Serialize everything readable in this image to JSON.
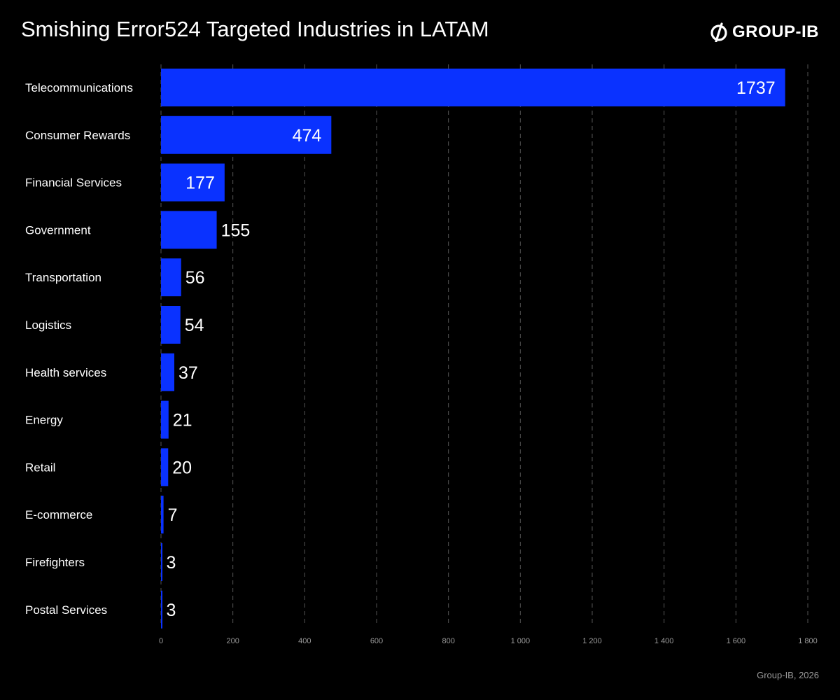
{
  "header": {
    "title": "Smishing Error524 Targeted Industries in LATAM",
    "logo_text": "GROUP-IB"
  },
  "footer": {
    "source": "Group-IB, 2026"
  },
  "colors": {
    "background": "#000000",
    "bar": "#0a32ff",
    "grid": "#555555",
    "text": "#ffffff",
    "muted": "#9a9a9a"
  },
  "chart_data": {
    "type": "bar",
    "orientation": "horizontal",
    "title": "Smishing Error524 Targeted Industries in LATAM",
    "categories": [
      "Telecommunications",
      "Consumer Rewards",
      "Financial Services",
      "Government",
      "Transportation",
      "Logistics",
      "Health services",
      "Energy",
      "Retail",
      "E-commerce",
      "Firefighters",
      "Postal Services"
    ],
    "values": [
      1737,
      474,
      177,
      155,
      56,
      54,
      37,
      21,
      20,
      7,
      3,
      3
    ],
    "xlim": [
      0,
      1800
    ],
    "xticks": [
      0,
      200,
      400,
      600,
      800,
      1000,
      1200,
      1400,
      1600,
      1800
    ],
    "xtick_labels": [
      "0",
      "200",
      "400",
      "600",
      "800",
      "1 000",
      "1 200",
      "1 400",
      "1 600",
      "1 800"
    ],
    "grid": true,
    "grid_style": "dashed-vertical"
  }
}
